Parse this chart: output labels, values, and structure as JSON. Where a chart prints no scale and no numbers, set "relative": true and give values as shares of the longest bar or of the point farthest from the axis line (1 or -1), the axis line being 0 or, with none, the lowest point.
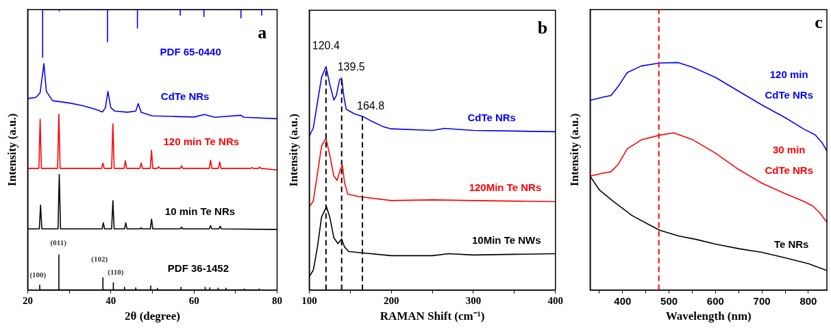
{
  "chart_data": [
    {
      "type": "line",
      "relative": true,
      "xlabel": "2θ (degree)",
      "ylabel": "Intensity (a.u.)",
      "xlim": [
        20,
        80
      ],
      "xticks": [
        20,
        {
          "value": 30,
          "label": null
        },
        40,
        {
          "value": 50,
          "label": null
        },
        60,
        {
          "value": 70,
          "label": null
        },
        80
      ],
      "tick_labels": "x",
      "line_style": "solid",
      "series": [
        {
          "name": "PDF 65-0440",
          "color": "#0000ff",
          "x": [
            23.6,
            23.6,
            23.6,
            27.6,
            27.6,
            27.6,
            39.2,
            39.2,
            39.2,
            46.4,
            46.4,
            46.4,
            56.7,
            56.7,
            56.7,
            62.4,
            62.4,
            62.4,
            71.3,
            71.3,
            71.3,
            76.3,
            76.3,
            76.3
          ],
          "values": [
            1,
            0.83,
            1,
            1,
            0.995,
            1,
            1,
            0.885,
            1,
            1,
            0.934,
            1,
            1,
            0.98,
            1,
            1,
            0.975,
            1,
            1,
            0.97,
            1,
            1,
            0.98,
            1
          ]
        },
        {
          "name": "CdTe NRs",
          "color": "#0000ff",
          "x": [
            20,
            22,
            23,
            23.9,
            24.5,
            26,
            30,
            33,
            36,
            38,
            38.7,
            39.3,
            40,
            41,
            44,
            46,
            46.6,
            47.3,
            50,
            55,
            60,
            62.5,
            65,
            71.3,
            72,
            80
          ],
          "values": [
            0.683,
            0.687,
            0.704,
            0.807,
            0.708,
            0.675,
            0.667,
            0.658,
            0.646,
            0.635,
            0.65,
            0.708,
            0.65,
            0.638,
            0.634,
            0.638,
            0.665,
            0.634,
            0.621,
            0.619,
            0.617,
            0.626,
            0.616,
            0.623,
            0.616,
            0.611
          ]
        },
        {
          "name": "120 min Te NRs",
          "color": "#ff0000",
          "x": [
            20,
            22.7,
            23.0,
            23.3,
            27.2,
            27.5,
            27.8,
            37.8,
            38.1,
            38.4,
            40.2,
            40.5,
            40.8,
            43.2,
            43.5,
            43.8,
            47.0,
            47.3,
            47.6,
            49.5,
            49.8,
            50.1,
            51.2,
            51.5,
            51.8,
            56.7,
            57,
            57.3,
            63.7,
            64,
            64.3,
            65.9,
            66.2,
            66.5,
            73.7,
            74,
            74.3,
            75.5,
            75.8,
            76.1,
            80
          ],
          "values": [
            0.434,
            0.434,
            0.609,
            0.434,
            0.434,
            0.627,
            0.434,
            0.434,
            0.453,
            0.434,
            0.434,
            0.593,
            0.434,
            0.434,
            0.461,
            0.434,
            0.434,
            0.453,
            0.434,
            0.434,
            0.498,
            0.434,
            0.434,
            0.44,
            0.434,
            0.434,
            0.443,
            0.434,
            0.434,
            0.463,
            0.434,
            0.434,
            0.457,
            0.434,
            0.434,
            0.437,
            0.434,
            0.434,
            0.438,
            0.434,
            0.428
          ]
        },
        {
          "name": "10 min Te NRs",
          "color": "#000000",
          "x": [
            20,
            22.8,
            23.1,
            23.4,
            27.3,
            27.6,
            27.9,
            37.9,
            38.2,
            38.5,
            40.2,
            40.5,
            40.8,
            43.3,
            43.6,
            43.9,
            47.0,
            47.3,
            47.6,
            49.5,
            49.8,
            50.1,
            56.7,
            57,
            57.3,
            63.7,
            64,
            64.3,
            66.0,
            66.3,
            66.6,
            80
          ],
          "values": [
            0.218,
            0.218,
            0.303,
            0.218,
            0.218,
            0.412,
            0.218,
            0.218,
            0.24,
            0.218,
            0.218,
            0.319,
            0.218,
            0.218,
            0.24,
            0.218,
            0.218,
            0.222,
            0.218,
            0.218,
            0.253,
            0.218,
            0.218,
            0.224,
            0.218,
            0.218,
            0.23,
            0.218,
            0.218,
            0.228,
            0.218,
            0.216
          ]
        },
        {
          "name": "PDF 36-1452",
          "color": "#000000",
          "x": [
            22.9,
            22.9,
            22.9,
            27.5,
            27.5,
            27.5,
            38.1,
            38.1,
            38.1,
            40.6,
            40.6,
            40.6,
            43.3,
            43.3,
            43.3,
            46,
            46,
            46,
            49.6,
            49.6,
            49.6,
            51.2,
            51.2,
            51.2,
            56.9,
            56.9,
            56.9,
            62.7,
            62.7,
            62.7,
            63.8,
            63.8,
            63.8,
            65.8,
            65.8,
            65.8,
            67.7,
            67.7,
            67.7,
            72.1,
            72.1,
            72.1,
            75.7,
            75.7,
            75.7
          ],
          "values": [
            0,
            0.018,
            0,
            0,
            0.125,
            0,
            0,
            0.044,
            0,
            0,
            0.026,
            0,
            0,
            0.01,
            0,
            0,
            0.008,
            0,
            0,
            0.015,
            0,
            0,
            0.006,
            0,
            0,
            0.01,
            0,
            0,
            0.01,
            0,
            0,
            0.008,
            0,
            0,
            0.007,
            0,
            0,
            0.007,
            0,
            0,
            0.004,
            0,
            0,
            0.004,
            0
          ]
        }
      ],
      "annotations": [
        "a",
        "(100)",
        "(011)",
        "(102)",
        "(110)"
      ]
    },
    {
      "type": "line",
      "relative": true,
      "xlabel": "RAMAN Shift (cm⁻¹)",
      "ylabel": "Intensity (a.u.)",
      "xlim": [
        100,
        400
      ],
      "xticks": [
        100,
        {
          "value": 150,
          "label": null
        },
        200,
        {
          "value": 250,
          "label": null
        },
        300,
        {
          "value": 350,
          "label": null
        },
        400
      ],
      "tick_labels": "x",
      "line_style": "solid",
      "series": [
        {
          "name": "CdTe NRs",
          "color": "#0000ff",
          "x": [
            100,
            105,
            110,
            115,
            120.4,
            125,
            130,
            133,
            137,
            139.5,
            142,
            145,
            155,
            165,
            175,
            190,
            200,
            250,
            265,
            300,
            350,
            400
          ],
          "values": [
            0.688,
            0.727,
            0.84,
            0.953,
            1,
            0.922,
            0.851,
            0.871,
            0.942,
            0.949,
            0.871,
            0.81,
            0.789,
            0.778,
            0.758,
            0.732,
            0.722,
            0.715,
            0.724,
            0.715,
            0.712,
            0.709
          ]
        },
        {
          "name": "120Min Te NRs",
          "color": "#ff0000",
          "x": [
            100,
            105,
            110,
            115,
            120.4,
            125,
            130,
            134,
            138,
            140.5,
            143,
            147,
            160,
            200,
            250,
            300,
            400
          ],
          "values": [
            0.373,
            0.399,
            0.521,
            0.645,
            0.68,
            0.604,
            0.511,
            0.491,
            0.542,
            0.558,
            0.481,
            0.43,
            0.419,
            0.401,
            0.404,
            0.401,
            0.396
          ]
        },
        {
          "name": "10Min Te NWs",
          "color": "#000000",
          "x": [
            100,
            105,
            110,
            115,
            121,
            125,
            130,
            135,
            139.5,
            143,
            148,
            160,
            200,
            250,
            270,
            300,
            350,
            400
          ],
          "values": [
            0.06,
            0.09,
            0.193,
            0.327,
            0.373,
            0.327,
            0.234,
            0.208,
            0.229,
            0.193,
            0.173,
            0.168,
            0.154,
            0.154,
            0.163,
            0.157,
            0.16,
            0.163
          ]
        }
      ],
      "ref_lines": [
        {
          "axis": "x",
          "value": 120.4,
          "label": "120.4",
          "color": "#000000",
          "line_style": "dashed"
        },
        {
          "axis": "x",
          "value": 139.5,
          "label": "139.5",
          "color": "#000000",
          "line_style": "dashed"
        },
        {
          "axis": "x",
          "value": 164.8,
          "label": "164.8",
          "color": "#000000",
          "line_style": "dashed"
        }
      ],
      "annotations": [
        "b"
      ]
    },
    {
      "type": "line",
      "relative": true,
      "xlabel": "Wavelength (nm)",
      "ylabel": "Intensity (a.u.)",
      "xlim": [
        330,
        840
      ],
      "xticks": [
        {
          "value": 350,
          "label": null
        },
        400,
        {
          "value": 450,
          "label": null
        },
        500,
        {
          "value": 550,
          "label": null
        },
        600,
        {
          "value": 650,
          "label": null
        },
        700,
        {
          "value": 750,
          "label": null
        },
        800
      ],
      "tick_labels": "x",
      "line_style": "solid",
      "series": [
        {
          "name": "120 min CdTe NRs",
          "color": "#0000ff",
          "x": [
            330,
            360,
            375,
            390,
            410,
            440,
            480,
            520,
            550,
            600,
            650,
            700,
            750,
            790,
            815,
            830,
            840
          ],
          "values": [
            0.834,
            0.849,
            0.855,
            0.894,
            0.956,
            0.985,
            0.998,
            1,
            0.98,
            0.935,
            0.874,
            0.814,
            0.758,
            0.708,
            0.682,
            0.647,
            0.612
          ]
        },
        {
          "name": "30 min CdTe NRs",
          "color": "#ff0000",
          "x": [
            330,
            360,
            375,
            390,
            410,
            440,
            480,
            510,
            550,
            600,
            650,
            700,
            750,
            790,
            810,
            825,
            840
          ],
          "values": [
            0.501,
            0.515,
            0.52,
            0.551,
            0.621,
            0.66,
            0.681,
            0.691,
            0.662,
            0.602,
            0.53,
            0.47,
            0.424,
            0.39,
            0.369,
            0.339,
            0.298
          ]
        },
        {
          "name": "Te NRs",
          "color": "#000000",
          "x": [
            330,
            350,
            380,
            420,
            460,
            480,
            520,
            560,
            600,
            650,
            700,
            750,
            800,
            840
          ],
          "values": [
            0.501,
            0.44,
            0.39,
            0.328,
            0.284,
            0.263,
            0.238,
            0.222,
            0.202,
            0.182,
            0.166,
            0.142,
            0.116,
            0.086
          ]
        }
      ],
      "ref_lines": [
        {
          "axis": "x",
          "value": 478,
          "color": "#ff0000",
          "line_style": "dashed"
        }
      ],
      "annotations": [
        "c"
      ]
    }
  ]
}
